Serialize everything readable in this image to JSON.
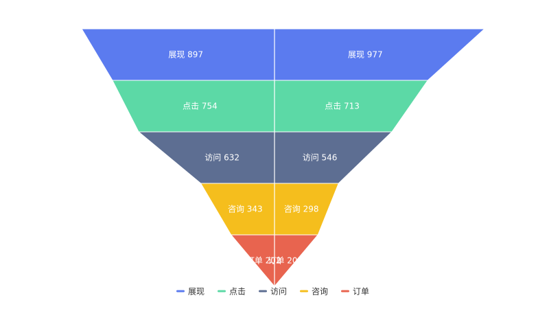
{
  "chart_data": {
    "type": "funnel",
    "categories": [
      "展现",
      "点击",
      "访问",
      "咨询",
      "订单"
    ],
    "series": [
      {
        "values": [
          897,
          754,
          632,
          343,
          202
        ]
      },
      {
        "values": [
          977,
          713,
          546,
          298,
          202
        ]
      }
    ],
    "colors": [
      "#5B7BEF",
      "#5CD9A6",
      "#5D6E92",
      "#F5BE1D",
      "#E8644F"
    ],
    "legend": {
      "items": [
        "展现",
        "点击",
        "访问",
        "咨询",
        "订单"
      ],
      "position": "bottom"
    },
    "label_color": "#FFFFFF"
  }
}
